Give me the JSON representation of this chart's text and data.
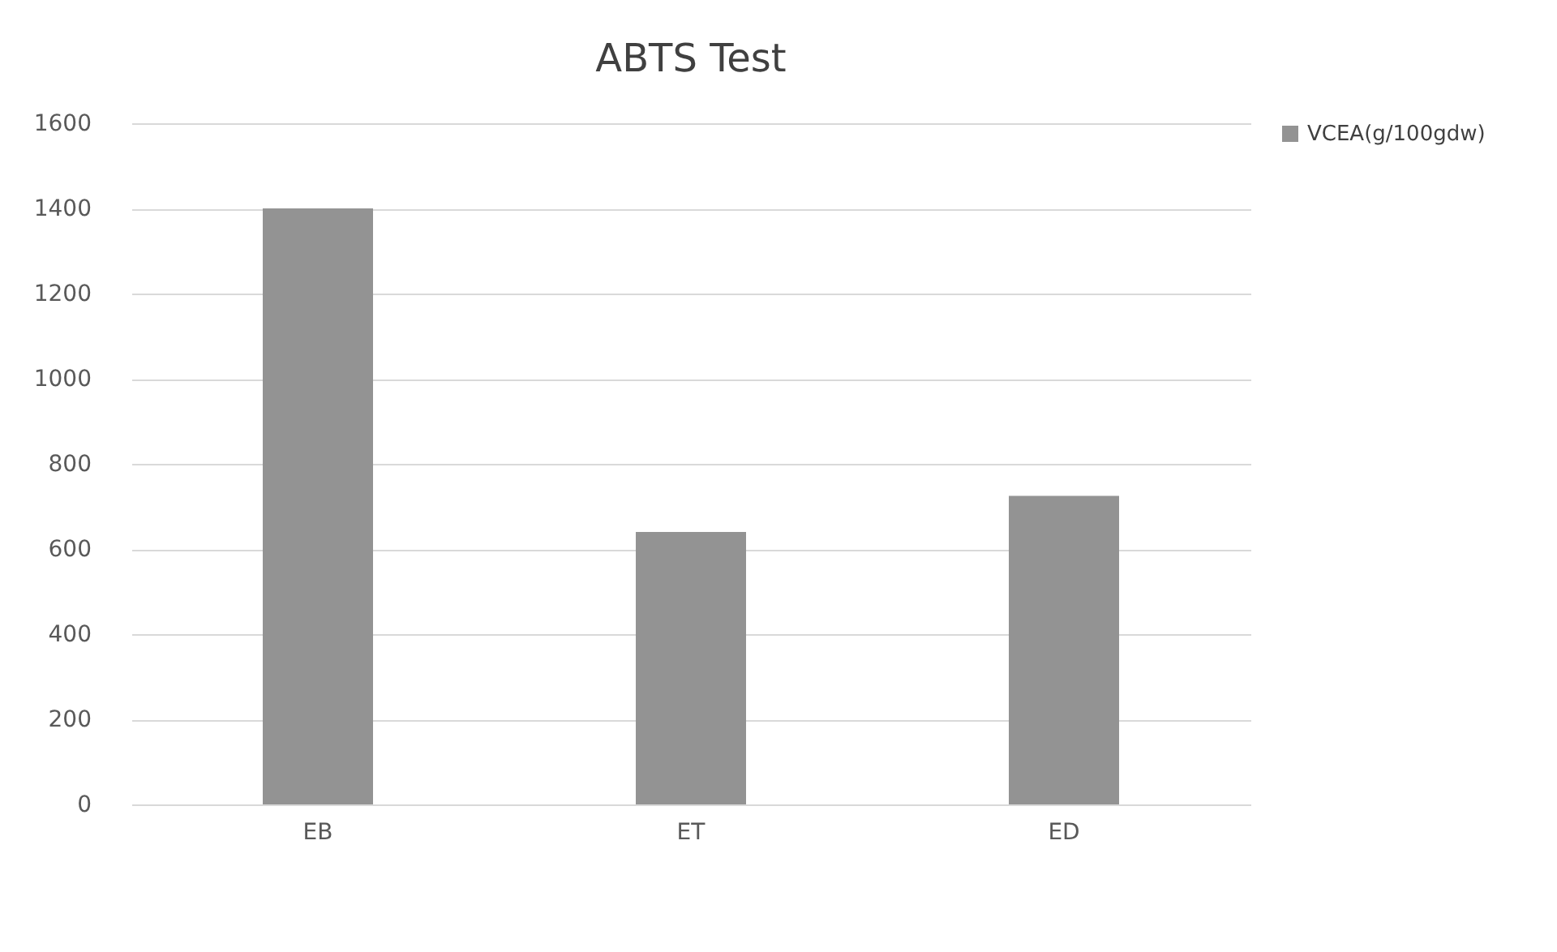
{
  "chart_data": {
    "type": "bar",
    "title": "ABTS Test",
    "categories": [
      "EB",
      "ET",
      "ED"
    ],
    "series": [
      {
        "name": "VCEA(g/100gdw)",
        "color": "#939393",
        "values": [
          1400,
          640,
          725
        ]
      }
    ],
    "ylim": [
      0,
      1600
    ],
    "yticks": [
      0,
      200,
      400,
      600,
      800,
      1000,
      1200,
      1400,
      1600
    ],
    "grid": "y",
    "legend": "right"
  }
}
